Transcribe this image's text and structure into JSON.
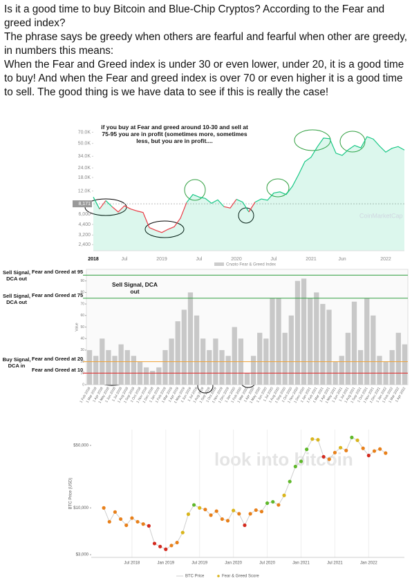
{
  "header": {
    "paragraphs": [
      "Is it a good time to buy Bitcoin and Blue-Chip Cryptos? According to the Fear and greed index?",
      "The phrase says be greedy when others are fearful and fearful when other are greedy, in numbers this means:",
      "When the Fear and Greed index is under 30 or even lower, under 20, it is a good time to buy! And when the Fear and greed index is over 70 or even higher it is a good time to sell. The good thing is we have data to see if this is really the case!"
    ]
  },
  "chart_data": [
    {
      "type": "line",
      "x": [
        "2018-02",
        "2018-03",
        "2018-04",
        "2018-05",
        "2018-06",
        "2018-07",
        "2018-08",
        "2018-09",
        "2018-10",
        "2018-11",
        "2018-12",
        "2019-01",
        "2019-02",
        "2019-03",
        "2019-04",
        "2019-05",
        "2019-06",
        "2019-07",
        "2019-08",
        "2019-09",
        "2019-10",
        "2019-11",
        "2019-12",
        "2020-01",
        "2020-02",
        "2020-03",
        "2020-04",
        "2020-05",
        "2020-06",
        "2020-07",
        "2020-08",
        "2020-09",
        "2020-10",
        "2020-11",
        "2020-12",
        "2021-01",
        "2021-02",
        "2021-03",
        "2021-04",
        "2021-05",
        "2021-06",
        "2021-07",
        "2021-08",
        "2021-09",
        "2021-10",
        "2021-11",
        "2021-12",
        "2022-01",
        "2022-02",
        "2022-03",
        "2022-04"
      ],
      "series": [
        {
          "name": "BTC Price",
          "color": "#16c784",
          "values": [
            10000,
            7000,
            9000,
            7500,
            6400,
            7700,
            7000,
            6600,
            6300,
            4000,
            3700,
            3450,
            3800,
            4100,
            5300,
            8500,
            10800,
            10000,
            9600,
            8300,
            9200,
            7500,
            7200,
            9350,
            8600,
            6400,
            8600,
            9450,
            9100,
            11300,
            11700,
            10800,
            13800,
            19700,
            29000,
            33100,
            45100,
            58800,
            57700,
            37300,
            35000,
            41500,
            47100,
            43800,
            61300,
            57000,
            46300,
            38500,
            43200,
            45500,
            41000
          ]
        }
      ],
      "below_color": "#ea3943",
      "threshold": {
        "value": 8171,
        "label": "8,171"
      },
      "log_scale": true,
      "ylim": [
        2000,
        80000
      ],
      "yticks": [
        {
          "value": 2400,
          "label": "2,400"
        },
        {
          "value": 3200,
          "label": "3,200"
        },
        {
          "value": 4400,
          "label": "4,400"
        },
        {
          "value": 6000,
          "label": "6,000"
        },
        {
          "value": 12000,
          "label": "12.0K"
        },
        {
          "value": 18000,
          "label": "18.0K"
        },
        {
          "value": 24000,
          "label": "24.0K"
        },
        {
          "value": 34000,
          "label": "34.0K"
        },
        {
          "value": 50000,
          "label": "50.0K"
        },
        {
          "value": 70000,
          "label": "70.0K"
        }
      ],
      "xticks": [
        {
          "value": "2018-02",
          "label": "2018"
        },
        {
          "value": "2018-07",
          "label": "Jul"
        },
        {
          "value": "2019-01",
          "label": "2019"
        },
        {
          "value": "2019-07",
          "label": "Jul"
        },
        {
          "value": "2020-01",
          "label": "2020"
        },
        {
          "value": "2020-07",
          "label": "Jul"
        },
        {
          "value": "2021-01",
          "label": "2021"
        },
        {
          "value": "2021-06",
          "label": "Jun"
        },
        {
          "value": "2022-01",
          "label": "2022"
        }
      ],
      "annotation": "if you buy at Fear and greed around 10-30 and sell at 75-95 you are in profit (sometimes more, sometimes less, but you are in profit....",
      "legend": "Crypto Fear & Greed Index",
      "watermark": "CoinMarketCap"
    },
    {
      "type": "bar",
      "categories": [
        "1 Feb 2018",
        "1 Mar 2018",
        "1 Apr 2018",
        "1 May 2018",
        "1 Jun 2018",
        "1 Jul 2018",
        "1 Aug 2018",
        "1 Sep 2018",
        "1 Oct 2018",
        "1 Nov 2018",
        "1 Dec 2018",
        "1 Jan 2019",
        "1 Feb 2019",
        "1 Mar 2019",
        "1 Apr 2019",
        "1 May 2019",
        "1 Jun 2019",
        "1 Jul 2019",
        "1 Aug 2019",
        "1 Sep 2019",
        "1 Oct 2019",
        "1 Nov 2019",
        "1 Dec 2019",
        "1 Jan 2020",
        "1 Feb 2020",
        "1 Mar 2020",
        "1 Apr 2020",
        "1 May 2020",
        "1 Jun 2020",
        "1 Jul 2020",
        "1 Aug 2020",
        "1 Sep 2020",
        "1 Oct 2020",
        "1 Nov 2020",
        "1 Dec 2020",
        "1 Jan 2021",
        "1 Feb 2021",
        "1 Mar 2021",
        "1 Apr 2021",
        "1 May 2021",
        "1 Jun 2021",
        "1 Jul 2021",
        "1 Aug 2021",
        "1 Sep 2021",
        "1 Oct 2021",
        "1 Nov 2021",
        "1 Dec 2021",
        "1 Jan 2022",
        "1 Feb 2022",
        "1 Mar 2022",
        "1 Apr 2022"
      ],
      "values": [
        30,
        25,
        40,
        30,
        25,
        35,
        30,
        25,
        20,
        15,
        12,
        15,
        30,
        40,
        55,
        65,
        80,
        60,
        40,
        30,
        40,
        30,
        25,
        50,
        40,
        10,
        25,
        45,
        40,
        75,
        75,
        45,
        60,
        90,
        92,
        75,
        80,
        70,
        65,
        20,
        25,
        45,
        72,
        30,
        75,
        60,
        25,
        20,
        30,
        45,
        35
      ],
      "color": "#c8c8c8",
      "ylabel": "Value",
      "ylim": [
        0,
        100
      ],
      "yticks": [
        0,
        10,
        20,
        30,
        40,
        50,
        60,
        70,
        80,
        90
      ],
      "reference_lines": [
        {
          "value": 95,
          "label": "Fear and Greed at 95",
          "color": "#2e9e3e",
          "signal": "Sell Signal, DCA out"
        },
        {
          "value": 75,
          "label": "Fear and Greed at 75",
          "color": "#2e9e3e",
          "signal": "Sell Signal, DCA out"
        },
        {
          "value": 20,
          "label": "Fear and Greed at 20",
          "color": "#f0a030",
          "signal": "Buy Signal, DCA in"
        },
        {
          "value": 10,
          "label": "Fear and Greed at 10",
          "color": "#e02020"
        }
      ],
      "annotation": "Sell Signal, DCA out"
    },
    {
      "type": "scatter",
      "x": [
        "2018-02",
        "2018-03",
        "2018-04",
        "2018-05",
        "2018-06",
        "2018-07",
        "2018-08",
        "2018-09",
        "2018-10",
        "2018-11",
        "2018-12",
        "2019-01",
        "2019-02",
        "2019-03",
        "2019-04",
        "2019-05",
        "2019-06",
        "2019-07",
        "2019-08",
        "2019-09",
        "2019-10",
        "2019-11",
        "2019-12",
        "2020-01",
        "2020-02",
        "2020-03",
        "2020-04",
        "2020-05",
        "2020-06",
        "2020-07",
        "2020-08",
        "2020-09",
        "2020-10",
        "2020-11",
        "2020-12",
        "2021-01",
        "2021-02",
        "2021-03",
        "2021-04",
        "2021-05",
        "2021-06",
        "2021-07",
        "2021-08",
        "2021-09",
        "2021-10",
        "2021-11",
        "2021-12",
        "2022-01",
        "2022-02",
        "2022-03",
        "2022-04"
      ],
      "series": [
        {
          "name": "BTC Price",
          "color": "#cfcfcf",
          "values": [
            10000,
            7000,
            9000,
            7500,
            6400,
            7700,
            7000,
            6600,
            6300,
            4000,
            3700,
            3450,
            3800,
            4100,
            5300,
            8500,
            10800,
            10000,
            9600,
            8300,
            9200,
            7500,
            7200,
            9350,
            8600,
            6400,
            8600,
            9450,
            9100,
            11300,
            11700,
            10800,
            13800,
            19700,
            29000,
            33100,
            45100,
            58800,
            57700,
            37300,
            35000,
            41500,
            47100,
            43800,
            61300,
            57000,
            46300,
            38500,
            43200,
            45500,
            41000
          ]
        }
      ],
      "scores": [
        30,
        25,
        40,
        30,
        25,
        35,
        30,
        25,
        20,
        15,
        12,
        15,
        30,
        40,
        55,
        65,
        80,
        60,
        40,
        30,
        40,
        30,
        25,
        50,
        40,
        10,
        25,
        45,
        40,
        75,
        75,
        45,
        60,
        90,
        92,
        75,
        80,
        70,
        65,
        20,
        25,
        45,
        72,
        30,
        75,
        60,
        25,
        20,
        30,
        45,
        35
      ],
      "score_name": "Fear & Greed Score",
      "color_scale": [
        "#d42a1e",
        "#e8801a",
        "#d9b51c",
        "#5fb82a"
      ],
      "log_scale": true,
      "ylim": [
        2800,
        75000
      ],
      "yticks": [
        {
          "value": 3000,
          "label": "$3,000"
        },
        {
          "value": 10000,
          "label": "$10,000"
        },
        {
          "value": 50000,
          "label": "$50,000"
        }
      ],
      "xticks": [
        {
          "value": "2018-07",
          "label": "Jul 2018"
        },
        {
          "value": "2019-01",
          "label": "Jan 2019"
        },
        {
          "value": "2019-07",
          "label": "Jul 2019"
        },
        {
          "value": "2020-01",
          "label": "Jan 2020"
        },
        {
          "value": "2020-07",
          "label": "Jul 2020"
        },
        {
          "value": "2021-01",
          "label": "Jan 2021"
        },
        {
          "value": "2021-07",
          "label": "Jul 2021"
        },
        {
          "value": "2022-01",
          "label": "Jan 2022"
        }
      ],
      "ylabel": "BTC Price (USD)",
      "watermark": "look into bitcoin"
    }
  ]
}
